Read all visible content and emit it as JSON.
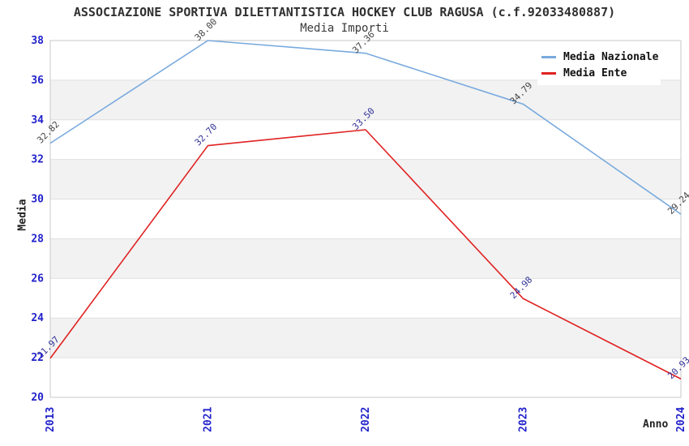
{
  "chart_data": {
    "type": "line",
    "title": "ASSOCIAZIONE SPORTIVA DILETTANTISTICA HOCKEY CLUB RAGUSA (c.f.92033480887)",
    "subtitle": "Media Importi",
    "xlabel": "Anno",
    "ylabel": "Media",
    "categories": [
      "2013",
      "2021",
      "2022",
      "2023",
      "2024"
    ],
    "series": [
      {
        "name": "Media Nazionale",
        "color": "#79aade",
        "label_color": "#444444",
        "values": [
          32.82,
          38.0,
          37.36,
          34.79,
          29.24
        ],
        "labels": [
          "32.82",
          "38.00",
          "37.36",
          "34.79",
          "29.24"
        ]
      },
      {
        "name": "Media Ente",
        "color": "#e02222",
        "label_color": "#333399",
        "values": [
          21.97,
          32.7,
          33.5,
          24.98,
          20.93
        ],
        "labels": [
          "21.97",
          "32.70",
          "33.50",
          "24.98",
          "20.93"
        ]
      }
    ],
    "ylim": [
      20,
      38
    ],
    "ytick_step": 2,
    "ytick_labels": [
      "20",
      "22",
      "24",
      "26",
      "28",
      "30",
      "32",
      "34",
      "36",
      "38"
    ],
    "grid": true,
    "legend_position": "top-right",
    "colors": {
      "tick_label": "#2222cc",
      "grid_line": "#e0e0e0",
      "band": "#f2f2f2",
      "plot_border": "#c9c9c9",
      "title_text": "#303030"
    }
  }
}
